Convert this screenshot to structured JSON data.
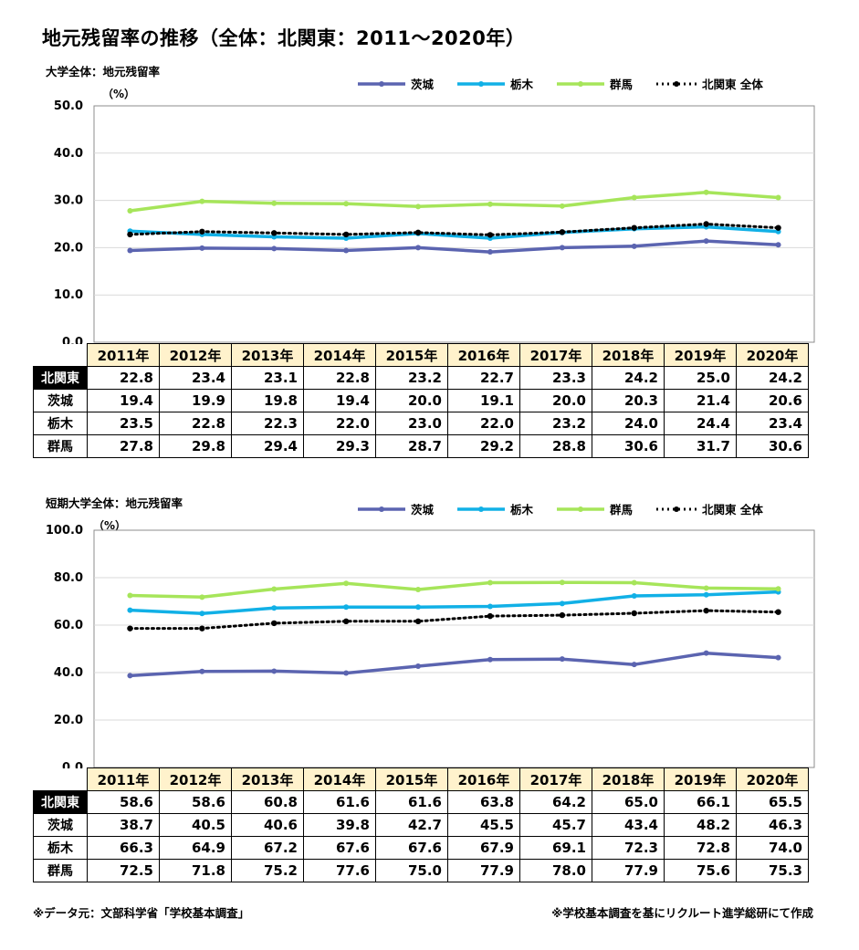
{
  "title": "地元残留率の推移（全体：北関東：2011～2020年）",
  "footer": {
    "source": "※データ元：文部科学省「学校基本調査」",
    "credit": "※学校基本調査を基にリクルート進学総研にて作成"
  },
  "colors": {
    "茨城": "#5b64b0",
    "栃木": "#11b0e6",
    "群馬": "#a6e55a",
    "北関東 全体": "#000000"
  },
  "chart_data": [
    {
      "type": "line",
      "panel_title": "大学全体：地元残留率",
      "unit": "（%）",
      "ylim": [
        0,
        50
      ],
      "yticks": [
        "0.0",
        "10.0",
        "20.0",
        "30.0",
        "40.0",
        "50.0"
      ],
      "grid": true,
      "legend_position": "top",
      "categories": [
        "2011年",
        "2012年",
        "2013年",
        "2014年",
        "2015年",
        "2016年",
        "2017年",
        "2018年",
        "2019年",
        "2020年"
      ],
      "series": [
        {
          "name": "茨城",
          "values": [
            19.4,
            19.9,
            19.8,
            19.4,
            20.0,
            19.1,
            20.0,
            20.3,
            21.4,
            20.6
          ]
        },
        {
          "name": "栃木",
          "values": [
            23.5,
            22.8,
            22.3,
            22.0,
            23.0,
            22.0,
            23.2,
            24.0,
            24.4,
            23.4
          ]
        },
        {
          "name": "群馬",
          "values": [
            27.8,
            29.8,
            29.4,
            29.3,
            28.7,
            29.2,
            28.8,
            30.6,
            31.7,
            30.6
          ]
        },
        {
          "name": "北関東 全体",
          "values": [
            22.8,
            23.4,
            23.1,
            22.8,
            23.2,
            22.7,
            23.3,
            24.2,
            25.0,
            24.2
          ]
        }
      ],
      "table": {
        "rows": [
          {
            "label": "北関東",
            "values": [
              "22.8",
              "23.4",
              "23.1",
              "22.8",
              "23.2",
              "22.7",
              "23.3",
              "24.2",
              "25.0",
              "24.2"
            ]
          },
          {
            "label": "茨城",
            "values": [
              "19.4",
              "19.9",
              "19.8",
              "19.4",
              "20.0",
              "19.1",
              "20.0",
              "20.3",
              "21.4",
              "20.6"
            ]
          },
          {
            "label": "栃木",
            "values": [
              "23.5",
              "22.8",
              "22.3",
              "22.0",
              "23.0",
              "22.0",
              "23.2",
              "24.0",
              "24.4",
              "23.4"
            ]
          },
          {
            "label": "群馬",
            "values": [
              "27.8",
              "29.8",
              "29.4",
              "29.3",
              "28.7",
              "29.2",
              "28.8",
              "30.6",
              "31.7",
              "30.6"
            ]
          }
        ]
      }
    },
    {
      "type": "line",
      "panel_title": "短期大学全体：地元残留率",
      "unit": "（%）",
      "ylim": [
        0,
        100
      ],
      "yticks": [
        "0.0",
        "20.0",
        "40.0",
        "60.0",
        "80.0",
        "100.0"
      ],
      "grid": true,
      "legend_position": "top",
      "categories": [
        "2011年",
        "2012年",
        "2013年",
        "2014年",
        "2015年",
        "2016年",
        "2017年",
        "2018年",
        "2019年",
        "2020年"
      ],
      "series": [
        {
          "name": "茨城",
          "values": [
            38.7,
            40.5,
            40.6,
            39.8,
            42.7,
            45.5,
            45.7,
            43.4,
            48.2,
            46.3
          ]
        },
        {
          "name": "栃木",
          "values": [
            66.3,
            64.9,
            67.2,
            67.6,
            67.6,
            67.9,
            69.1,
            72.3,
            72.8,
            74.0
          ]
        },
        {
          "name": "群馬",
          "values": [
            72.5,
            71.8,
            75.2,
            77.6,
            75.0,
            77.9,
            78.0,
            77.9,
            75.6,
            75.3
          ]
        },
        {
          "name": "北関東 全体",
          "values": [
            58.6,
            58.6,
            60.8,
            61.6,
            61.6,
            63.8,
            64.2,
            65.0,
            66.1,
            65.5
          ]
        }
      ],
      "table": {
        "rows": [
          {
            "label": "北関東",
            "values": [
              "58.6",
              "58.6",
              "60.8",
              "61.6",
              "61.6",
              "63.8",
              "64.2",
              "65.0",
              "66.1",
              "65.5"
            ]
          },
          {
            "label": "茨城",
            "values": [
              "38.7",
              "40.5",
              "40.6",
              "39.8",
              "42.7",
              "45.5",
              "45.7",
              "43.4",
              "48.2",
              "46.3"
            ]
          },
          {
            "label": "栃木",
            "values": [
              "66.3",
              "64.9",
              "67.2",
              "67.6",
              "67.6",
              "67.9",
              "69.1",
              "72.3",
              "72.8",
              "74.0"
            ]
          },
          {
            "label": "群馬",
            "values": [
              "72.5",
              "71.8",
              "75.2",
              "77.6",
              "75.0",
              "77.9",
              "78.0",
              "77.9",
              "75.6",
              "75.3"
            ]
          }
        ]
      }
    }
  ]
}
